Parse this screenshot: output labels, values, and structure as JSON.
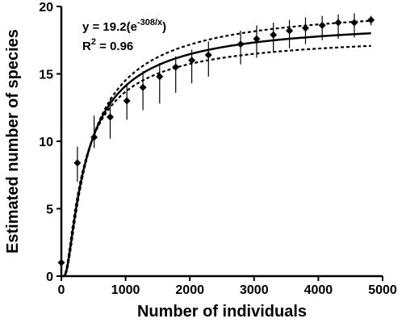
{
  "chart_data": {
    "type": "scatter",
    "xlabel": "Number of individuals",
    "ylabel": "Estimated number of species",
    "xlim": [
      0,
      5000
    ],
    "ylim": [
      0,
      20
    ],
    "x_ticks": [
      0,
      1000,
      2000,
      3000,
      4000,
      5000
    ],
    "y_ticks": [
      0,
      5,
      10,
      15,
      20
    ],
    "x_tick_labels": [
      "0",
      "1000",
      "2000",
      "3000",
      "4000",
      "5000"
    ],
    "y_tick_labels": [
      "0",
      "5",
      "10",
      "15",
      "20"
    ],
    "grid": false,
    "equation": {
      "prefix": "y = 19.2(e",
      "exponent": "-308/x",
      "suffix": ")",
      "r2_prefix": "R",
      "r2_sup": "2",
      "r2_value": " = 0.96"
    },
    "fit_model": {
      "a": 19.2,
      "b": 308
    },
    "confidence_band": {
      "lower_a": 18.1,
      "lower_b": 280,
      "upper_a": 20.3,
      "upper_b": 335
    },
    "points": [
      {
        "x": 0,
        "y": 1.0,
        "lo": 0.8,
        "hi": 1.3
      },
      {
        "x": 250,
        "y": 8.4,
        "lo": 7.0,
        "hi": 9.6
      },
      {
        "x": 510,
        "y": 10.3,
        "lo": 9.5,
        "hi": 11.9
      },
      {
        "x": 760,
        "y": 11.8,
        "lo": 10.2,
        "hi": 13.2
      },
      {
        "x": 1020,
        "y": 13.0,
        "lo": 11.6,
        "hi": 14.2
      },
      {
        "x": 1270,
        "y": 14.0,
        "lo": 12.3,
        "hi": 15.2
      },
      {
        "x": 1530,
        "y": 14.8,
        "lo": 12.8,
        "hi": 15.8
      },
      {
        "x": 1780,
        "y": 15.5,
        "lo": 13.6,
        "hi": 16.3
      },
      {
        "x": 2030,
        "y": 16.0,
        "lo": 14.3,
        "hi": 16.8
      },
      {
        "x": 2290,
        "y": 16.4,
        "lo": 14.8,
        "hi": 17.4
      },
      {
        "x": 2790,
        "y": 17.2,
        "lo": 15.7,
        "hi": 18.2
      },
      {
        "x": 3040,
        "y": 17.6,
        "lo": 16.2,
        "hi": 18.6
      },
      {
        "x": 3300,
        "y": 17.9,
        "lo": 16.6,
        "hi": 18.8
      },
      {
        "x": 3550,
        "y": 18.2,
        "lo": 16.9,
        "hi": 19.0
      },
      {
        "x": 3800,
        "y": 18.4,
        "lo": 17.2,
        "hi": 19.2
      },
      {
        "x": 4060,
        "y": 18.6,
        "lo": 17.5,
        "hi": 19.3
      },
      {
        "x": 4310,
        "y": 18.8,
        "lo": 17.6,
        "hi": 19.4
      },
      {
        "x": 4560,
        "y": 18.8,
        "lo": 17.7,
        "hi": 19.5
      },
      {
        "x": 4820,
        "y": 19.0,
        "lo": 18.6,
        "hi": 19.3
      }
    ]
  }
}
